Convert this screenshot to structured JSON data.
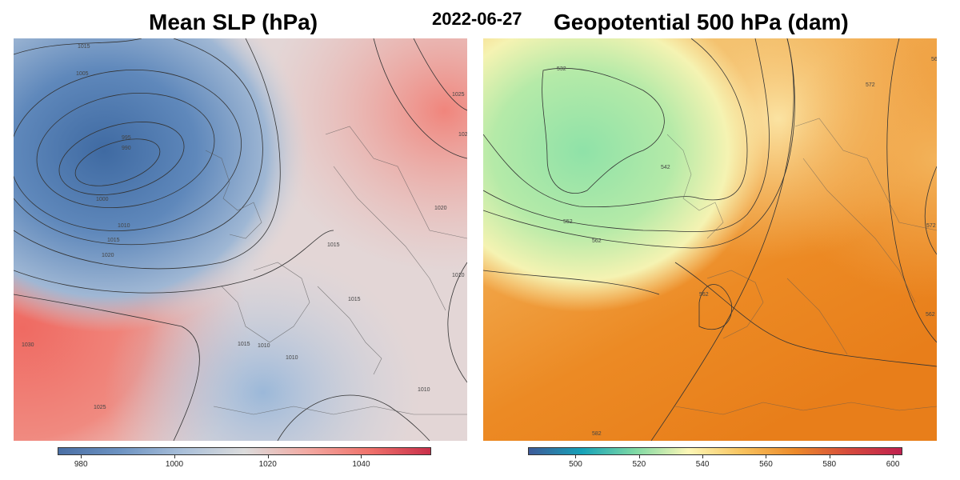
{
  "header": {
    "left_title": "Mean SLP (hPa)",
    "date": "2022-06-27",
    "right_title": "Geopotential 500 hPa (dam)"
  },
  "slp_map": {
    "contour_labels": [
      "1015",
      "1005",
      "995",
      "990",
      "1000",
      "1010",
      "1015",
      "1020",
      "1030",
      "1025",
      "1025",
      "1020",
      "1020",
      "1015",
      "1015",
      "1010",
      "1010",
      "1010",
      "1015",
      "1010"
    ],
    "colorbar": {
      "min": 975,
      "max": 1055,
      "ticks": [
        "980",
        "1000",
        "1020",
        "1040"
      ],
      "tick_values": [
        980,
        1000,
        1020,
        1040
      ],
      "colors": [
        "#4a6fa5",
        "#6d93c2",
        "#a9bfd9",
        "#dcdcdc",
        "#f2aaa3",
        "#f0736c",
        "#c9304a"
      ]
    },
    "fill_colors": {
      "low": "#4f79ac",
      "mid": "#d9d9dc",
      "high": "#f07b72"
    }
  },
  "z500_map": {
    "contour_labels": [
      "532",
      "542",
      "552",
      "562",
      "562",
      "572",
      "572",
      "582",
      "562",
      "562"
    ],
    "colorbar": {
      "min": 485,
      "max": 603,
      "ticks": [
        "500",
        "520",
        "540",
        "560",
        "580",
        "600"
      ],
      "tick_values": [
        500,
        520,
        540,
        560,
        580,
        600
      ],
      "colors": [
        "#3d5a99",
        "#16a2b8",
        "#7fd9a4",
        "#fdf7b6",
        "#f8c35e",
        "#ec8a2a",
        "#d64b3c",
        "#c0204f"
      ]
    },
    "fill_colors": {
      "low": "#8fe0a4",
      "mid": "#fdf2b0",
      "high": "#ee8a24"
    }
  }
}
